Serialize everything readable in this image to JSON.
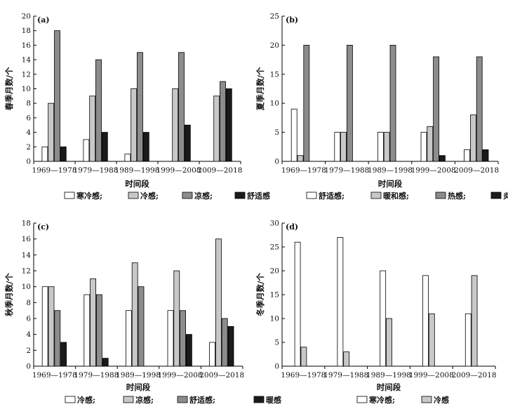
{
  "chart_data": [
    {
      "type": "bar",
      "panel_label": "(a)",
      "xlabel": "时间段",
      "ylabel": "春季月数/个",
      "ylim": [
        0,
        20
      ],
      "yticks": [
        0,
        2,
        4,
        6,
        8,
        10,
        12,
        14,
        16,
        18,
        20
      ],
      "categories": [
        "1969—1978",
        "1979—1988",
        "1989—1998",
        "1999—2008",
        "2009—2018"
      ],
      "series": [
        {
          "name": "寒冷感;",
          "color": "#ffffff",
          "values": [
            2,
            3,
            1,
            0,
            0
          ]
        },
        {
          "name": "冷感;",
          "color": "#c8c8c8",
          "values": [
            8,
            9,
            10,
            10,
            9
          ]
        },
        {
          "name": "凉感;",
          "color": "#8c8c8c",
          "values": [
            18,
            14,
            15,
            15,
            11
          ]
        },
        {
          "name": "舒适感",
          "color": "#1a1a1a",
          "values": [
            2,
            4,
            4,
            5,
            10
          ]
        }
      ],
      "grid": false,
      "legend": "bottom"
    },
    {
      "type": "bar",
      "panel_label": "(b)",
      "xlabel": "时间段",
      "ylabel": "夏季月数/个",
      "ylim": [
        0,
        25
      ],
      "yticks": [
        0,
        5,
        10,
        15,
        20,
        25
      ],
      "categories": [
        "1969—1978",
        "1979—1988",
        "1989—1998",
        "1999—2008",
        "2009—2018"
      ],
      "series": [
        {
          "name": "舒适感;",
          "color": "#ffffff",
          "values": [
            9,
            5,
            5,
            5,
            2
          ]
        },
        {
          "name": "暖和感;",
          "color": "#c8c8c8",
          "values": [
            1,
            5,
            5,
            6,
            8
          ]
        },
        {
          "name": "热感;",
          "color": "#8c8c8c",
          "values": [
            20,
            20,
            20,
            18,
            18
          ]
        },
        {
          "name": "炎热感",
          "color": "#1a1a1a",
          "values": [
            0,
            0,
            0,
            1,
            2
          ]
        }
      ],
      "grid": false,
      "legend": "bottom"
    },
    {
      "type": "bar",
      "panel_label": "(c)",
      "xlabel": "时间段",
      "ylabel": "秋季月数/个",
      "ylim": [
        0,
        18
      ],
      "yticks": [
        0,
        2,
        4,
        6,
        8,
        10,
        12,
        14,
        16,
        18
      ],
      "categories": [
        "1969—1978",
        "1979—1988",
        "1989—1998",
        "1999—2008",
        "2009—2018"
      ],
      "series": [
        {
          "name": "冷感;",
          "color": "#ffffff",
          "values": [
            10,
            9,
            7,
            7,
            3
          ]
        },
        {
          "name": "凉感;",
          "color": "#c8c8c8",
          "values": [
            10,
            11,
            13,
            12,
            16
          ]
        },
        {
          "name": "舒适感;",
          "color": "#8c8c8c",
          "values": [
            7,
            9,
            10,
            7,
            6
          ]
        },
        {
          "name": "暖感",
          "color": "#1a1a1a",
          "values": [
            3,
            1,
            0,
            4,
            5
          ]
        }
      ],
      "grid": false,
      "legend": "bottom"
    },
    {
      "type": "bar",
      "panel_label": "(d)",
      "xlabel": "时间段",
      "ylabel": "冬季月数/个",
      "ylim": [
        0,
        30
      ],
      "yticks": [
        0,
        5,
        10,
        15,
        20,
        25,
        30
      ],
      "categories": [
        "1969—1978",
        "1979—1988",
        "1989—1998",
        "1999—2008",
        "2009—2018"
      ],
      "series": [
        {
          "name": "寒冷感;",
          "color": "#ffffff",
          "values": [
            26,
            27,
            20,
            19,
            11
          ]
        },
        {
          "name": "冷感",
          "color": "#c8c8c8",
          "values": [
            4,
            3,
            10,
            11,
            19
          ]
        }
      ],
      "grid": false,
      "legend": "bottom"
    }
  ]
}
